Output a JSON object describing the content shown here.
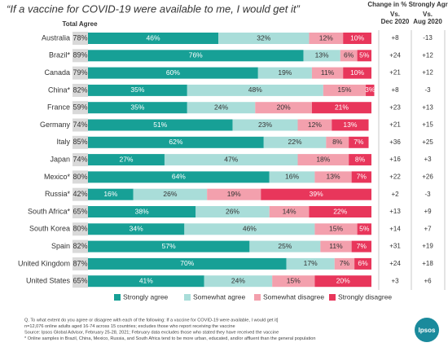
{
  "chart_data": {
    "type": "bar",
    "orientation": "horizontal",
    "stacked": true,
    "title": "“If a vaccine for COVID-19 were available to me, I would get it”",
    "categories": [
      "Australia",
      "Brazil*",
      "Canada",
      "China*",
      "France",
      "Germany",
      "Italy",
      "Japan",
      "Mexico*",
      "Russia*",
      "South Africa*",
      "South Korea",
      "Spain",
      "United Kingdom",
      "United States"
    ],
    "xlim": [
      0,
      100
    ],
    "series": [
      {
        "name": "Strongly agree",
        "color": "#17a096",
        "text_color": "#ffffff",
        "values": [
          46,
          76,
          60,
          35,
          35,
          51,
          62,
          27,
          64,
          16,
          38,
          34,
          57,
          70,
          41
        ],
        "value_labels": [
          "46%",
          "76%",
          "60%",
          "35%",
          "35%",
          "51%",
          "62%",
          "27%",
          "64%",
          "16%",
          "38%",
          "34%",
          "57%",
          "70%",
          "41%"
        ]
      },
      {
        "name": "Somewhat agree",
        "color": "#a9ddd9",
        "text_color": "#333333",
        "values": [
          32,
          13,
          19,
          48,
          24,
          23,
          22,
          47,
          16,
          26,
          26,
          46,
          25,
          17,
          24
        ],
        "value_labels": [
          "32%",
          "13%",
          "19%",
          "48%",
          "24%",
          "23%",
          "22%",
          "47%",
          "16%",
          "26%",
          "26%",
          "46%",
          "25%",
          "17%",
          "24%"
        ]
      },
      {
        "name": "Somewhat disagree",
        "color": "#f3a0ad",
        "text_color": "#333333",
        "values": [
          12,
          6,
          11,
          15,
          20,
          12,
          8,
          18,
          13,
          19,
          14,
          15,
          11,
          7,
          15
        ],
        "value_labels": [
          "12%",
          "6%",
          "11%",
          "15%",
          "20%",
          "12%",
          "8%",
          "18%",
          "13%",
          "19%",
          "14%",
          "15%",
          "11%",
          "7%",
          "15%"
        ]
      },
      {
        "name": "Strongly disagree",
        "color": "#e8365b",
        "text_color": "#ffffff",
        "values": [
          10,
          5,
          10,
          3,
          21,
          13,
          7,
          8,
          7,
          39,
          22,
          5,
          7,
          6,
          20
        ],
        "value_labels": [
          "10%",
          "5%",
          "10%",
          "3%",
          "21%",
          "13%",
          "7%",
          "8%",
          "7%",
          "39%",
          "22%",
          "5%",
          "7%",
          "6%",
          "20%"
        ]
      }
    ],
    "total": {
      "name": "Total Agree",
      "values": [
        78,
        89,
        79,
        82,
        59,
        74,
        85,
        74,
        80,
        42,
        65,
        80,
        82,
        87,
        65
      ],
      "value_labels": [
        "78%",
        "89%",
        "79%",
        "82%",
        "59%",
        "74%",
        "85%",
        "74%",
        "80%",
        "42%",
        "65%",
        "80%",
        "82%",
        "87%",
        "65%"
      ]
    },
    "change": {
      "title": "Change in % Strongly Agree",
      "columns": [
        {
          "name": [
            "Vs.",
            "Dec 2020"
          ],
          "values": [
            8,
            24,
            21,
            8,
            23,
            21,
            36,
            16,
            22,
            2,
            13,
            14,
            31,
            24,
            3
          ],
          "value_labels": [
            "+8",
            "+24",
            "+21",
            "+8",
            "+23",
            "+21",
            "+36",
            "+16",
            "+22",
            "+2",
            "+13",
            "+14",
            "+31",
            "+24",
            "+3"
          ]
        },
        {
          "name": [
            "Vs.",
            "Aug 2020"
          ],
          "values": [
            -13,
            12,
            12,
            -3,
            13,
            15,
            25,
            3,
            26,
            -3,
            9,
            7,
            19,
            18,
            6
          ],
          "value_labels": [
            "-13",
            "+12",
            "+12",
            "-3",
            "+13",
            "+15",
            "+25",
            "+3",
            "+26",
            "-3",
            "+9",
            "+7",
            "+19",
            "+18",
            "+6"
          ]
        }
      ]
    },
    "legend": "bottom"
  },
  "notes": [
    "Q. To what extent do you agree or disagree with each of the following: If a vaccine for COVID-19 were available, I would get it]",
    "n=12,076 online adults aged 16-74 across 15 countries; excludes those who report receiving the vaccine",
    "Source: Ipsos Global Advisor, February 25-28, 2021; February data excludes those who stated they have received the vaccine",
    "* Online samples in Brazil, China, Mexico, Russia, and South Africa tend to be more urban, educated, and/or affluent than the general population"
  ],
  "logo": "Ipsos"
}
